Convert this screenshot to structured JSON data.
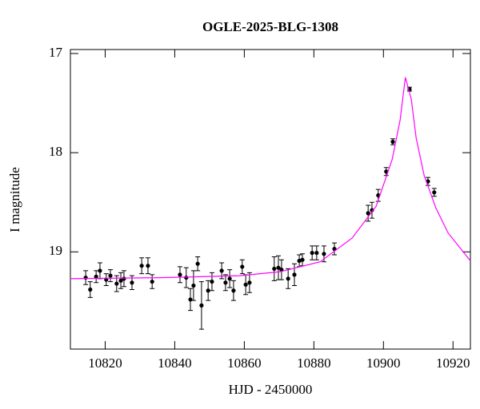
{
  "chart_data": {
    "type": "scatter",
    "title": "OGLE-2025-BLG-1308",
    "xlabel": "HJD - 2450000",
    "ylabel": "I magnitude",
    "xlim": [
      10810,
      10925
    ],
    "xticks": [
      10820,
      10840,
      10860,
      10880,
      10900,
      10920
    ],
    "ylim": [
      16.96,
      19.98
    ],
    "yticks": [
      17,
      18,
      19
    ],
    "y_inverted": true,
    "series": [
      {
        "type": "scatter",
        "color": "#000000",
        "x": [
          10814.4,
          10815.7,
          10817.4,
          10818.5,
          10820.3,
          10821.5,
          10823.3,
          10824.5,
          10825.4,
          10827.7,
          10830.5,
          10832.3,
          10833.5,
          10841.5,
          10843.3,
          10844.5,
          10845.4,
          10846.6,
          10847.7,
          10849.6,
          10850.7,
          10853.5,
          10854.6,
          10855.8,
          10856.9,
          10859.4,
          10860.4,
          10861.5,
          10868.6,
          10869.8,
          10870.7,
          10872.6,
          10874.4,
          10875.8,
          10876.7,
          10879.5,
          10880.8,
          10882.9,
          10885.9,
          10895.6,
          10896.7,
          10898.5,
          10900.8,
          10902.7,
          10907.5,
          10912.8,
          10914.6
        ],
        "values": [
          19.26,
          19.38,
          19.25,
          19.19,
          19.28,
          19.24,
          19.32,
          19.29,
          19.27,
          19.31,
          19.14,
          19.14,
          19.3,
          19.23,
          19.26,
          19.48,
          19.34,
          19.12,
          19.54,
          19.39,
          19.3,
          19.19,
          19.31,
          19.27,
          19.39,
          19.15,
          19.33,
          19.31,
          19.17,
          19.16,
          19.18,
          19.27,
          19.23,
          19.09,
          19.08,
          19.01,
          19.01,
          19.02,
          18.97,
          18.61,
          18.58,
          18.43,
          18.19,
          17.89,
          17.36,
          18.29,
          18.4
        ],
        "errors": [
          0.07,
          0.08,
          0.06,
          0.08,
          0.06,
          0.06,
          0.08,
          0.08,
          0.08,
          0.07,
          0.08,
          0.08,
          0.07,
          0.08,
          0.1,
          0.11,
          0.15,
          0.07,
          0.24,
          0.1,
          0.09,
          0.08,
          0.08,
          0.09,
          0.1,
          0.07,
          0.1,
          0.1,
          0.12,
          0.12,
          0.1,
          0.1,
          0.11,
          0.06,
          0.06,
          0.07,
          0.07,
          0.08,
          0.06,
          0.08,
          0.08,
          0.06,
          0.04,
          0.03,
          0.02,
          0.04,
          0.04
        ]
      },
      {
        "type": "line",
        "color": "#ff00ff",
        "x": [
          10810,
          10835.8,
          10858.8,
          10870.3,
          10881.8,
          10891,
          10897.9,
          10902.5,
          10904.8,
          10906.3,
          10908,
          10909.4,
          10911.7,
          10915.1,
          10918.6,
          10925
        ],
        "values": [
          19.27,
          19.26,
          19.24,
          19.2,
          19.1,
          18.86,
          18.54,
          18.07,
          17.67,
          17.24,
          17.46,
          17.85,
          18.23,
          18.56,
          18.81,
          19.09
        ]
      }
    ]
  }
}
